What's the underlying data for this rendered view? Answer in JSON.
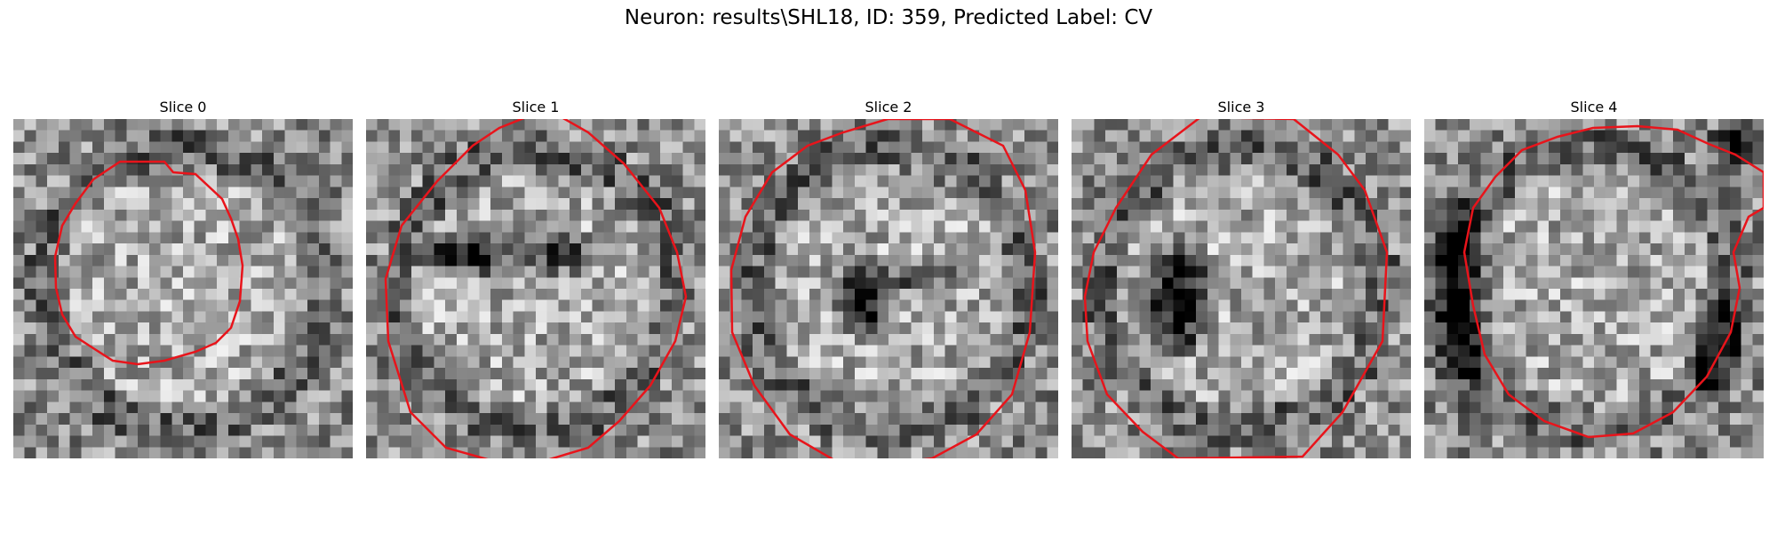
{
  "figure": {
    "title": "Neuron: results\\SHL18, ID: 359, Predicted Label: CV",
    "slices": [
      {
        "title": "Slice 0",
        "dark_spot": "none"
      },
      {
        "title": "Slice 1",
        "dark_spot": "upper-band"
      },
      {
        "title": "Slice 2",
        "dark_spot": "center"
      },
      {
        "title": "Slice 3",
        "dark_spot": "center-left"
      },
      {
        "title": "Slice 4",
        "dark_spot": "rim"
      }
    ],
    "colors": {
      "contour": "#e8141b",
      "background": "#ffffff"
    },
    "colormap": "gray"
  }
}
